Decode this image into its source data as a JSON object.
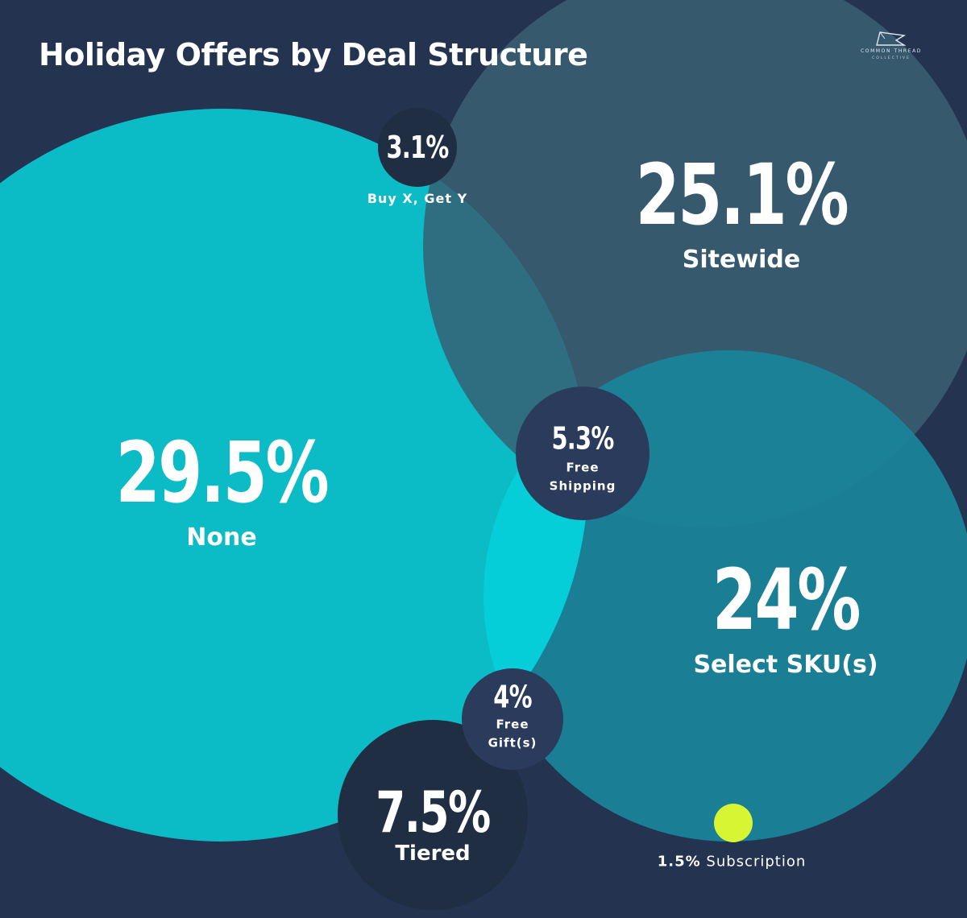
{
  "title": "Holiday Offers by Deal Structure",
  "logo": {
    "line1": "COMMON THREAD",
    "line2": "COLLECTIVE"
  },
  "colors": {
    "background": "#233350",
    "none": "#0ac0c9",
    "sitewide": "#36596e",
    "select_skus": "#1a8499",
    "tiered": "#1f2e42",
    "buy_x_get_y": "#1f2e42",
    "free_shipping": "#2b3b5c",
    "free_gifts": "#2b3b5c",
    "subscription": "#d7f533"
  },
  "chart_data": {
    "type": "bubble",
    "title": "Holiday Offers by Deal Structure",
    "unit": "%",
    "series": [
      {
        "name": "None",
        "value": 29.5,
        "label": "29.5%"
      },
      {
        "name": "Sitewide",
        "value": 25.1,
        "label": "25.1%"
      },
      {
        "name": "Select SKU(s)",
        "value": 24,
        "label": "24%"
      },
      {
        "name": "Tiered",
        "value": 7.5,
        "label": "7.5%"
      },
      {
        "name": "Free Shipping",
        "value": 5.3,
        "label": "5.3%"
      },
      {
        "name": "Free Gift(s)",
        "value": 4,
        "label": "4%"
      },
      {
        "name": "Buy X, Get Y",
        "value": 3.1,
        "label": "3.1%"
      },
      {
        "name": "Subscription",
        "value": 1.5,
        "label": "1.5%"
      }
    ]
  },
  "labels": {
    "none": {
      "value": "29.5%",
      "name": "None"
    },
    "sitewide": {
      "value": "25.1%",
      "name": "Sitewide"
    },
    "select_skus": {
      "value": "24%",
      "name": "Select SKU(s)"
    },
    "tiered": {
      "value": "7.5%",
      "name": "Tiered"
    },
    "free_shipping": {
      "value": "5.3%",
      "name_line1": "Free",
      "name_line2": "Shipping"
    },
    "free_gifts": {
      "value": "4%",
      "name_line1": "Free",
      "name_line2": "Gift(s)"
    },
    "buy_x_get_y": {
      "value": "3.1%",
      "name": "Buy X, Get Y"
    },
    "subscription": {
      "value": "1.5%",
      "name": "Subscription"
    }
  }
}
